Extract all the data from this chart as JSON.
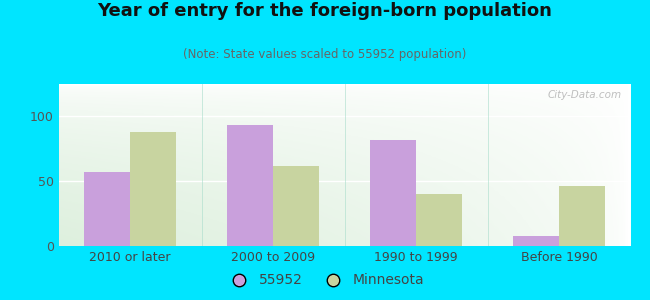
{
  "title": "Year of entry for the foreign-born population",
  "subtitle": "(Note: State values scaled to 55952 population)",
  "categories": [
    "2010 or later",
    "2000 to 2009",
    "1990 to 1999",
    "Before 1990"
  ],
  "values_55952": [
    57,
    93,
    82,
    8
  ],
  "values_minnesota": [
    88,
    62,
    40,
    46
  ],
  "color_55952": "#c9a0dc",
  "color_minnesota": "#c8d4a0",
  "bar_width": 0.32,
  "ylim": [
    0,
    125
  ],
  "yticks": [
    0,
    50,
    100
  ],
  "background_color": "#ffffff",
  "outer_background": "#00e5ff",
  "legend_label_55952": "55952",
  "legend_label_minnesota": "Minnesota",
  "watermark": "City-Data.com",
  "title_fontsize": 13,
  "subtitle_fontsize": 8.5,
  "tick_fontsize": 9,
  "legend_fontsize": 10
}
